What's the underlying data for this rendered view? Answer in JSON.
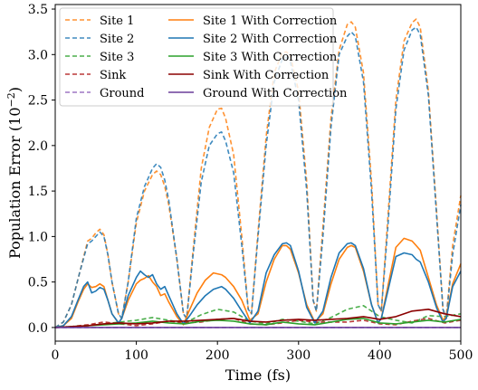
{
  "chart_data": {
    "type": "line",
    "title": "",
    "xlabel": "Time (fs)",
    "ylabel_main": "Population Error (10",
    "ylabel_exp": "−2",
    "ylabel_close": ")",
    "xlim": [
      0,
      500
    ],
    "ylim": [
      -0.15,
      3.55
    ],
    "x_ticks": [
      0,
      100,
      200,
      300,
      400,
      500
    ],
    "x_tick_labels": [
      "0",
      "100",
      "200",
      "300",
      "400",
      "500"
    ],
    "y_ticks": [
      0,
      0.5,
      1,
      1.5,
      2,
      2.5,
      3,
      3.5
    ],
    "y_tick_labels": [
      "0.0",
      "0.5",
      "1.0",
      "1.5",
      "2.0",
      "2.5",
      "3.0",
      "3.5"
    ],
    "grid": false,
    "legend_position": "top-left",
    "series": [
      {
        "name": "Site 1",
        "color": "#ff7f0e",
        "dashed": true,
        "opacity": 0.85,
        "x": [
          0,
          10,
          20,
          30,
          40,
          45,
          50,
          55,
          60,
          65,
          70,
          78,
          82,
          90,
          100,
          110,
          120,
          125,
          130,
          135,
          140,
          150,
          158,
          162,
          170,
          180,
          190,
          200,
          205,
          210,
          220,
          230,
          238,
          242,
          250,
          260,
          270,
          280,
          285,
          290,
          300,
          310,
          318,
          322,
          330,
          340,
          350,
          360,
          365,
          370,
          380,
          390,
          398,
          402,
          410,
          420,
          430,
          440,
          445,
          450,
          460,
          470,
          478,
          482,
          490,
          500
        ],
        "y": [
          0,
          0.06,
          0.25,
          0.6,
          0.95,
          0.98,
          1.04,
          1.08,
          1.02,
          0.8,
          0.5,
          0.15,
          0.1,
          0.5,
          1.15,
          1.5,
          1.68,
          1.72,
          1.68,
          1.55,
          1.35,
          0.75,
          0.15,
          0.1,
          0.85,
          1.75,
          2.2,
          2.4,
          2.41,
          2.3,
          1.9,
          1.0,
          0.2,
          0.15,
          1.05,
          2.1,
          2.8,
          3.02,
          3.03,
          2.98,
          2.6,
          1.6,
          0.3,
          0.18,
          1.1,
          2.3,
          3.05,
          3.33,
          3.36,
          3.3,
          2.8,
          1.6,
          0.25,
          0.18,
          1.2,
          2.5,
          3.15,
          3.35,
          3.39,
          3.3,
          2.6,
          1.3,
          0.2,
          0.1,
          0.9,
          1.45
        ]
      },
      {
        "name": "Site 2",
        "color": "#1f77b4",
        "dashed": true,
        "opacity": 0.85,
        "x": [
          0,
          10,
          20,
          30,
          40,
          45,
          50,
          55,
          60,
          65,
          70,
          78,
          82,
          90,
          100,
          110,
          120,
          125,
          130,
          135,
          140,
          150,
          158,
          162,
          170,
          180,
          190,
          200,
          205,
          210,
          220,
          230,
          238,
          242,
          250,
          260,
          270,
          280,
          285,
          290,
          300,
          310,
          318,
          322,
          330,
          340,
          350,
          360,
          365,
          370,
          380,
          390,
          398,
          402,
          410,
          420,
          430,
          440,
          445,
          450,
          460,
          470,
          478,
          482,
          490,
          500
        ],
        "y": [
          0,
          0.06,
          0.25,
          0.6,
          0.92,
          0.95,
          1.0,
          1.05,
          1.0,
          0.8,
          0.5,
          0.15,
          0.1,
          0.5,
          1.2,
          1.55,
          1.75,
          1.8,
          1.76,
          1.62,
          1.4,
          0.75,
          0.15,
          0.1,
          0.8,
          1.6,
          2.0,
          2.13,
          2.15,
          2.05,
          1.7,
          0.9,
          0.2,
          0.15,
          1.0,
          2.0,
          2.7,
          2.95,
          2.97,
          2.92,
          2.5,
          1.5,
          0.3,
          0.18,
          1.0,
          2.2,
          3.0,
          3.2,
          3.25,
          3.2,
          2.7,
          1.5,
          0.25,
          0.18,
          1.1,
          2.4,
          3.05,
          3.27,
          3.3,
          3.22,
          2.55,
          1.25,
          0.2,
          0.1,
          0.8,
          1.35
        ]
      },
      {
        "name": "Site 3",
        "color": "#2ca02c",
        "dashed": true,
        "opacity": 0.85,
        "x": [
          0,
          20,
          40,
          60,
          80,
          100,
          120,
          140,
          160,
          180,
          200,
          220,
          240,
          260,
          280,
          300,
          320,
          340,
          360,
          380,
          400,
          420,
          440,
          460,
          480,
          500
        ],
        "y": [
          0,
          0.01,
          0.02,
          0.04,
          0.06,
          0.08,
          0.11,
          0.08,
          0.05,
          0.14,
          0.2,
          0.17,
          0.07,
          0.04,
          0.09,
          0.07,
          0.04,
          0.11,
          0.2,
          0.24,
          0.12,
          0.08,
          0.05,
          0.13,
          0.12,
          0.15
        ]
      },
      {
        "name": "Sink",
        "color": "#b22222",
        "dashed": true,
        "opacity": 0.9,
        "x": [
          0,
          20,
          40,
          60,
          80,
          100,
          120,
          140,
          160,
          180,
          200,
          220,
          240,
          260,
          280,
          300,
          320,
          340,
          360,
          380,
          400,
          420,
          440,
          460,
          480,
          500
        ],
        "y": [
          0,
          0.01,
          0.03,
          0.06,
          0.04,
          0.02,
          0.04,
          0.07,
          0.05,
          0.06,
          0.09,
          0.1,
          0.04,
          0.03,
          0.05,
          0.08,
          0.06,
          0.06,
          0.06,
          0.08,
          0.04,
          0.03,
          0.07,
          0.1,
          0.05,
          0.08
        ]
      },
      {
        "name": "Ground",
        "color": "#9467bd",
        "dashed": true,
        "opacity": 0.9,
        "x": [
          0,
          500
        ],
        "y": [
          0,
          0
        ]
      },
      {
        "name": "Site 1 With Correction",
        "color": "#ff7f0e",
        "dashed": false,
        "opacity": 1,
        "x": [
          0,
          10,
          20,
          28,
          35,
          40,
          45,
          50,
          55,
          60,
          65,
          70,
          78,
          82,
          90,
          100,
          105,
          110,
          115,
          120,
          125,
          130,
          135,
          140,
          150,
          158,
          165,
          175,
          185,
          195,
          205,
          210,
          220,
          230,
          240,
          250,
          260,
          270,
          280,
          285,
          290,
          300,
          310,
          320,
          330,
          340,
          350,
          360,
          365,
          370,
          380,
          390,
          398,
          402,
          410,
          420,
          430,
          440,
          445,
          450,
          460,
          470,
          478,
          482,
          490,
          500
        ],
        "y": [
          0,
          0.02,
          0.1,
          0.28,
          0.42,
          0.48,
          0.44,
          0.45,
          0.48,
          0.45,
          0.3,
          0.15,
          0.05,
          0.1,
          0.3,
          0.48,
          0.52,
          0.54,
          0.57,
          0.5,
          0.45,
          0.35,
          0.37,
          0.28,
          0.12,
          0.03,
          0.18,
          0.38,
          0.52,
          0.6,
          0.58,
          0.55,
          0.45,
          0.3,
          0.08,
          0.15,
          0.5,
          0.75,
          0.9,
          0.9,
          0.86,
          0.6,
          0.25,
          0.06,
          0.15,
          0.48,
          0.75,
          0.88,
          0.9,
          0.88,
          0.62,
          0.25,
          0.05,
          0.1,
          0.45,
          0.88,
          0.98,
          0.95,
          0.9,
          0.85,
          0.55,
          0.25,
          0.08,
          0.12,
          0.48,
          0.7
        ]
      },
      {
        "name": "Site 2 With Correction",
        "color": "#1f77b4",
        "dashed": false,
        "opacity": 1,
        "x": [
          0,
          10,
          20,
          28,
          35,
          40,
          45,
          50,
          55,
          60,
          65,
          70,
          78,
          82,
          90,
          100,
          105,
          110,
          115,
          120,
          125,
          130,
          135,
          140,
          150,
          158,
          165,
          175,
          185,
          195,
          205,
          210,
          220,
          230,
          240,
          250,
          260,
          270,
          280,
          285,
          290,
          300,
          310,
          320,
          330,
          340,
          350,
          360,
          365,
          370,
          380,
          390,
          398,
          402,
          410,
          420,
          430,
          440,
          445,
          450,
          460,
          470,
          478,
          482,
          490,
          500
        ],
        "y": [
          0,
          0.02,
          0.12,
          0.3,
          0.45,
          0.5,
          0.38,
          0.4,
          0.44,
          0.42,
          0.3,
          0.15,
          0.05,
          0.1,
          0.35,
          0.55,
          0.62,
          0.58,
          0.55,
          0.58,
          0.48,
          0.42,
          0.45,
          0.35,
          0.15,
          0.04,
          0.12,
          0.25,
          0.35,
          0.42,
          0.45,
          0.42,
          0.32,
          0.18,
          0.05,
          0.18,
          0.6,
          0.8,
          0.92,
          0.93,
          0.9,
          0.62,
          0.22,
          0.05,
          0.18,
          0.55,
          0.82,
          0.92,
          0.93,
          0.9,
          0.65,
          0.25,
          0.05,
          0.1,
          0.4,
          0.78,
          0.82,
          0.8,
          0.75,
          0.72,
          0.5,
          0.22,
          0.06,
          0.1,
          0.45,
          0.62
        ]
      },
      {
        "name": "Site 3 With Correction",
        "color": "#2ca02c",
        "dashed": false,
        "opacity": 1,
        "x": [
          0,
          20,
          40,
          60,
          80,
          100,
          120,
          140,
          160,
          180,
          200,
          220,
          240,
          260,
          280,
          300,
          320,
          340,
          360,
          380,
          400,
          420,
          440,
          460,
          480,
          500
        ],
        "y": [
          0,
          0.01,
          0.02,
          0.03,
          0.04,
          0.05,
          0.07,
          0.05,
          0.04,
          0.07,
          0.08,
          0.07,
          0.04,
          0.03,
          0.06,
          0.04,
          0.03,
          0.06,
          0.09,
          0.1,
          0.05,
          0.04,
          0.06,
          0.08,
          0.06,
          0.09
        ]
      },
      {
        "name": "Sink With Correction",
        "color": "#8b0000",
        "dashed": false,
        "opacity": 1,
        "x": [
          0,
          20,
          40,
          60,
          80,
          100,
          120,
          140,
          160,
          180,
          200,
          220,
          240,
          260,
          280,
          300,
          320,
          340,
          360,
          380,
          400,
          420,
          440,
          460,
          480,
          500
        ],
        "y": [
          0,
          0.01,
          0.02,
          0.04,
          0.05,
          0.04,
          0.05,
          0.07,
          0.07,
          0.08,
          0.09,
          0.1,
          0.07,
          0.06,
          0.08,
          0.09,
          0.08,
          0.09,
          0.1,
          0.12,
          0.09,
          0.12,
          0.18,
          0.2,
          0.15,
          0.12
        ]
      },
      {
        "name": "Ground With Correction",
        "color": "#6a3d9a",
        "dashed": false,
        "opacity": 1,
        "x": [
          0,
          500
        ],
        "y": [
          0,
          0
        ]
      }
    ]
  }
}
